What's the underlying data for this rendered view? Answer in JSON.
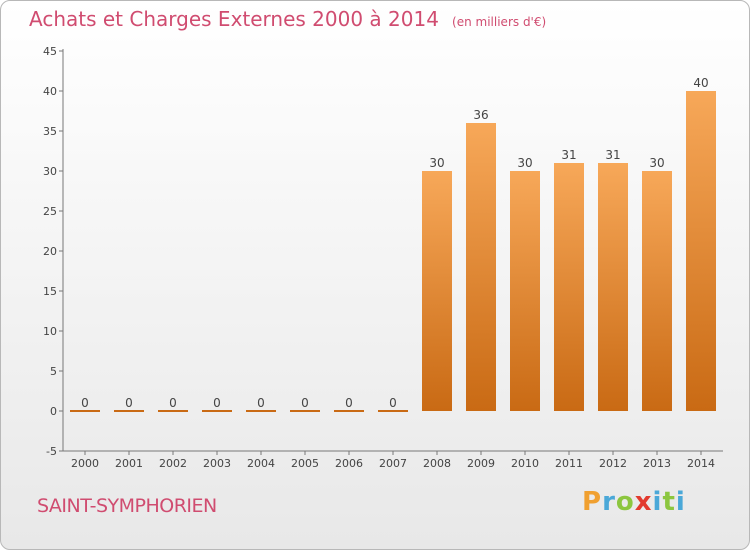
{
  "header": {
    "title": "Achats et Charges Externes 2000 à 2014",
    "subtitle": "(en milliers d'€)"
  },
  "footer": {
    "commune": "SAINT-SYMPHORIEN",
    "logo": [
      "P",
      "r",
      "o",
      "x",
      "i",
      "t",
      "i"
    ]
  },
  "colors": {
    "title": "#d04c70",
    "bar_light": "#f7a859",
    "bar_dark": "#c96a14",
    "logo": [
      "#f0a030",
      "#4aa8d8",
      "#8cc63f",
      "#e23a2e",
      "#4aa8d8",
      "#8cc63f",
      "#4aa8d8"
    ]
  },
  "chart_data": {
    "type": "bar",
    "title": "Achats et Charges Externes 2000 à 2014",
    "subtitle": "(en milliers d'€)",
    "categories": [
      "2000",
      "2001",
      "2002",
      "2003",
      "2004",
      "2005",
      "2006",
      "2007",
      "2008",
      "2009",
      "2010",
      "2011",
      "2012",
      "2013",
      "2014"
    ],
    "values": [
      0,
      0,
      0,
      0,
      0,
      0,
      0,
      0,
      30,
      36,
      30,
      31,
      31,
      30,
      40
    ],
    "ylim": [
      -5,
      45
    ],
    "yticks": [
      -5,
      0,
      5,
      10,
      15,
      20,
      25,
      30,
      35,
      40,
      45
    ],
    "grid": false,
    "legend": "none"
  }
}
